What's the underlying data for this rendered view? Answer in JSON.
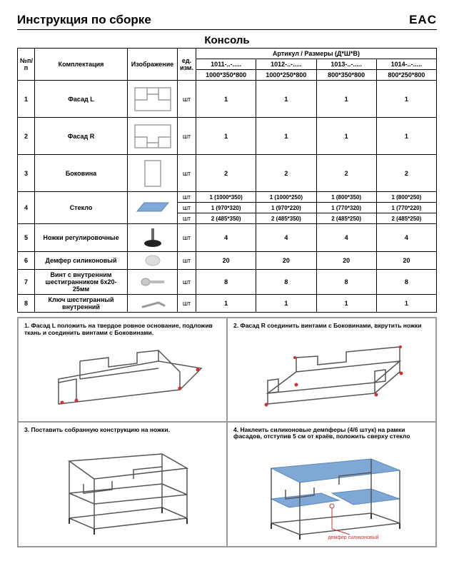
{
  "header": {
    "title": "Инструкция по сборке",
    "mark": "EAC"
  },
  "product": "Консоль",
  "tableHeaders": {
    "num": "№п/п",
    "name": "Комплектация",
    "img": "Изображение",
    "unit": "ед. изм.",
    "artGroup": "Артикул / Размеры (Д*Ш*В)"
  },
  "variants": [
    {
      "code": "1011-..-.....",
      "size": "1000*350*800"
    },
    {
      "code": "1012-..-.....",
      "size": "1000*250*800"
    },
    {
      "code": "1013-..-.....",
      "size": "800*350*800"
    },
    {
      "code": "1014-..-.....",
      "size": "800*250*800"
    }
  ],
  "rows": [
    {
      "n": "1",
      "name": "Фасад L",
      "unit": "шт",
      "qty": [
        "1",
        "1",
        "1",
        "1"
      ],
      "h": "tall"
    },
    {
      "n": "2",
      "name": "Фасад R",
      "unit": "шт",
      "qty": [
        "1",
        "1",
        "1",
        "1"
      ],
      "h": "tall"
    },
    {
      "n": "3",
      "name": "Боковина",
      "unit": "шт",
      "qty": [
        "2",
        "2",
        "2",
        "2"
      ],
      "h": "tall"
    }
  ],
  "glass": {
    "n": "4",
    "name": "Стекло",
    "lines": [
      {
        "unit": "шт",
        "vals": [
          "1 (1000*350)",
          "1 (1000*250)",
          "1 (800*350)",
          "1 (800*250)"
        ]
      },
      {
        "unit": "шт",
        "vals": [
          "1 (970*320)",
          "1 (970*220)",
          "1 (770*320)",
          "1 (770*220)"
        ]
      },
      {
        "unit": "шт",
        "vals": [
          "2 (485*350)",
          "2 (485*350)",
          "2 (485*250)",
          "2 (485*250)"
        ]
      }
    ]
  },
  "rows2": [
    {
      "n": "5",
      "name": "Ножки регулировочные",
      "unit": "шт",
      "qty": [
        "4",
        "4",
        "4",
        "4"
      ],
      "h": "mid"
    },
    {
      "n": "6",
      "name": "Демфер силиконовый",
      "unit": "шт",
      "qty": [
        "20",
        "20",
        "20",
        "20"
      ],
      "h": "short"
    },
    {
      "n": "7",
      "name": "Винт с внутренним шестигранником 6х20-25мм",
      "unit": "шт",
      "qty": [
        "8",
        "8",
        "8",
        "8"
      ],
      "h": "short"
    },
    {
      "n": "8",
      "name": "Ключ шестигранный внутренний",
      "unit": "шт",
      "qty": [
        "1",
        "1",
        "1",
        "1"
      ],
      "h": "short"
    }
  ],
  "steps": [
    "1. Фасад L положить на твердое ровное основание, подложив ткань и соединить винтами с Боковинами.",
    "2. Фасад R соединить винтами с Боковинами, вкрутить ножки",
    "3. Поставить собранную конструкцию на ножки.",
    "4. Наклеить силиконовые демпферы (4/6 штук) на рамки фасадов, отступив 5 см от краёв, положить сверху стекло"
  ],
  "step4label": "демфер силиконовый",
  "colors": {
    "glass": "#7fa8d6",
    "glassDark": "#5b88b8",
    "frame": "#555555",
    "frameLight": "#888888",
    "red": "#cc3333",
    "silver": "#b8b8b8"
  }
}
